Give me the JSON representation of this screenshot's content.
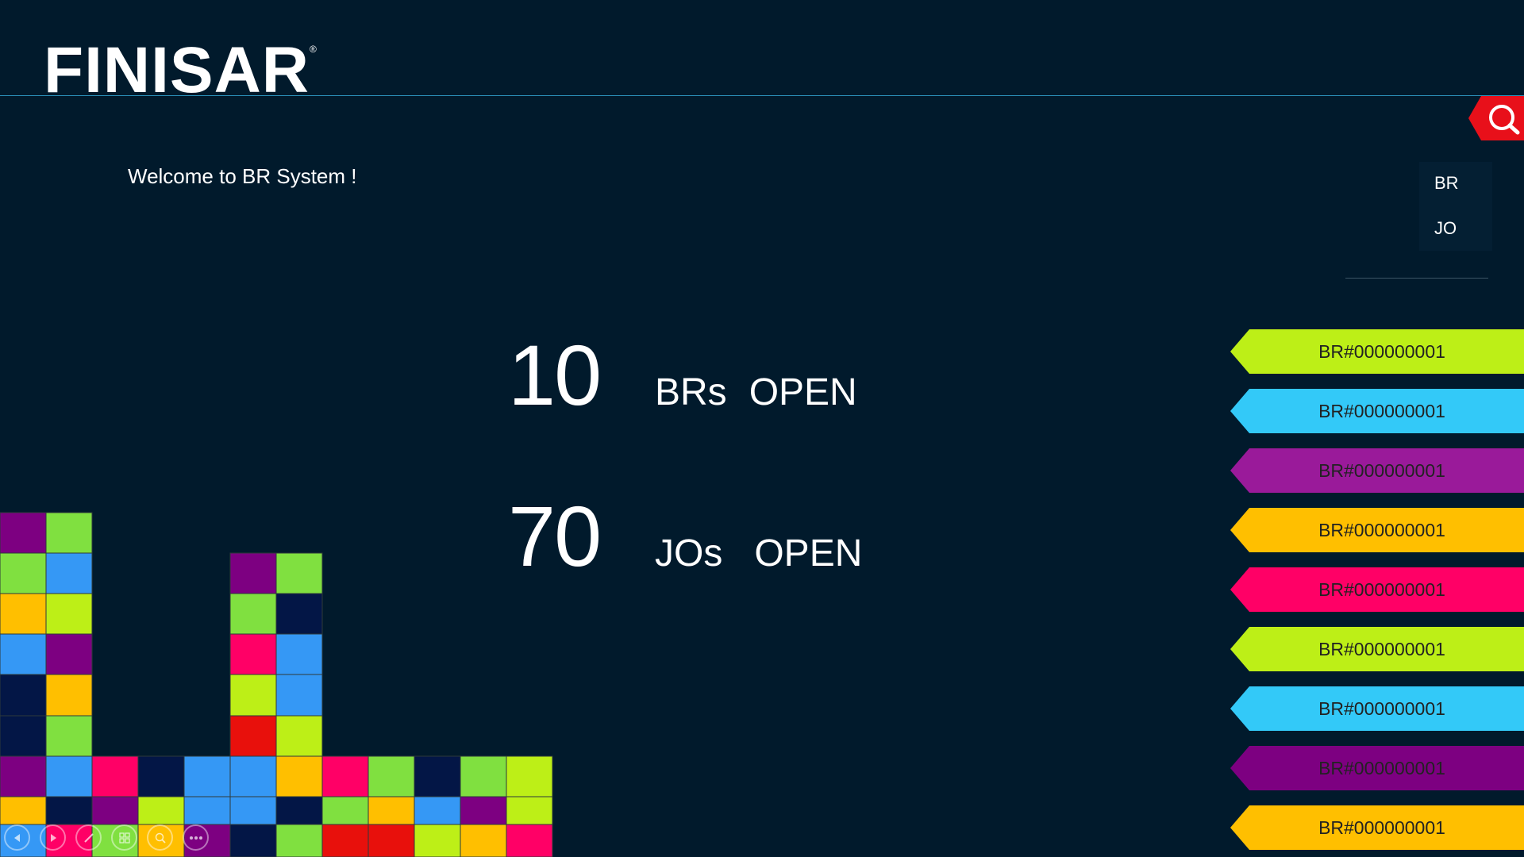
{
  "brand": {
    "logo": "FINISAR",
    "registered": "®"
  },
  "welcome": "Welcome to BR System !",
  "side_menu": {
    "items": [
      {
        "label": "BR"
      },
      {
        "label": "JO"
      }
    ]
  },
  "stats": [
    {
      "value": "10",
      "label_a": "BRs",
      "label_b": "OPEN"
    },
    {
      "value": "70",
      "label_a": "JOs",
      "label_b": "OPEN"
    }
  ],
  "br_list": [
    {
      "label": "BR#000000001",
      "color": "#bdef17"
    },
    {
      "label": "BR#000000001",
      "color": "#33c9f8"
    },
    {
      "label": "BR#000000001",
      "color": "#9a1a9a"
    },
    {
      "label": "BR#000000001",
      "color": "#ffbf00"
    },
    {
      "label": "BR#000000001",
      "color": "#ff0066"
    },
    {
      "label": "BR#000000001",
      "color": "#bdef17"
    },
    {
      "label": "BR#000000001",
      "color": "#33c9f8"
    },
    {
      "label": "BR#000000001",
      "color": "#7d0081"
    },
    {
      "label": "BR#000000001",
      "color": "#ffbf00"
    }
  ],
  "colors": {
    "background": "#011a2c",
    "accent_line": "#2a8fb8",
    "search_tab": "#e8101a",
    "tile_purple": "#7d0081",
    "tile_green": "#80e040",
    "tile_blue": "#3598f5",
    "tile_orange": "#ffbf00",
    "tile_lime": "#bdef17",
    "tile_navy": "#031646",
    "tile_pink": "#ff0066",
    "tile_red": "#e8100c"
  },
  "icons": {
    "search": "search-icon",
    "toolbar": [
      "back-icon",
      "forward-icon",
      "pen-icon",
      "slides-icon",
      "zoom-icon",
      "more-icon"
    ]
  }
}
